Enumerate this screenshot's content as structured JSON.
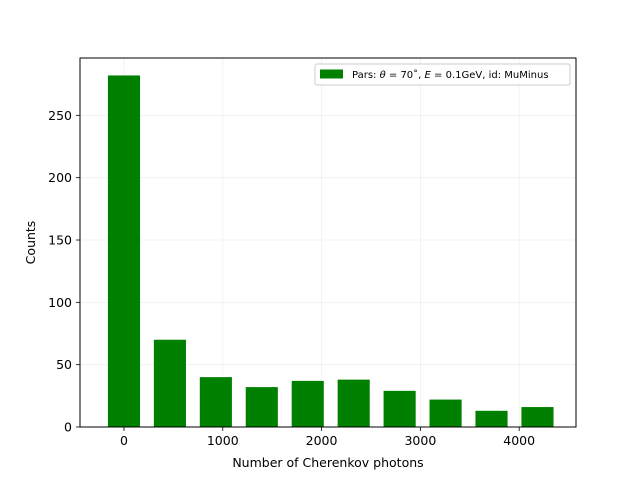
{
  "chart_data": {
    "type": "bar",
    "title": "",
    "xlabel": "Number of Cherenkov photons",
    "ylabel": "Counts",
    "bin_centers": [
      0,
      465,
      930,
      1395,
      1860,
      2325,
      2790,
      3255,
      3720,
      4185
    ],
    "bar_width": 325,
    "values": [
      282,
      70,
      40,
      32,
      37,
      38,
      29,
      22,
      13,
      16
    ],
    "xlim": [
      -445,
      4575
    ],
    "ylim": [
      0,
      296
    ],
    "xticks": [
      0,
      1000,
      2000,
      3000,
      4000
    ],
    "xtick_labels": [
      "0",
      "1000",
      "2000",
      "3000",
      "4000"
    ],
    "yticks": [
      0,
      50,
      100,
      150,
      200,
      250
    ],
    "ytick_labels": [
      "0",
      "50",
      "100",
      "150",
      "200",
      "250"
    ],
    "grid": true,
    "series": [
      {
        "name": "Pars: θ = 70˚, E = 0.1GeV, id: MuMinus",
        "color": "#008000"
      }
    ],
    "legend": {
      "placement": "top-right",
      "label_prefix": "Pars: ",
      "label_theta_sym": "θ",
      "label_theta_val": " = 70˚, ",
      "label_e_sym": "E",
      "label_e_val": " = 0.1GeV, id: MuMinus"
    }
  }
}
